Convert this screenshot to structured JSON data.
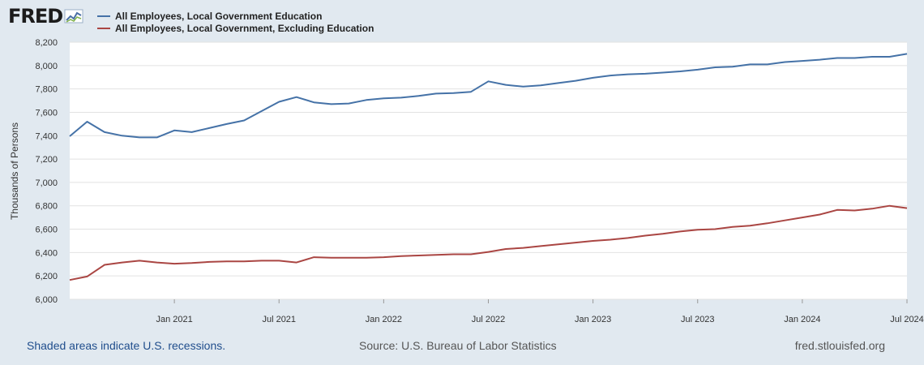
{
  "logo": {
    "text": "FRED"
  },
  "legend": [
    {
      "label": "All Employees, Local Government Education",
      "color": "#4572a7"
    },
    {
      "label": "All Employees, Local Government, Excluding Education",
      "color": "#aa4643"
    }
  ],
  "footer": {
    "recession_note": "Shaded areas indicate U.S. recessions.",
    "source": "Source: U.S. Bureau of Labor Statistics",
    "site": "fred.stlouisfed.org"
  },
  "chart_data": {
    "type": "line",
    "ylabel": "Thousands of Persons",
    "ylim": [
      6000,
      8200
    ],
    "yticks": [
      6000,
      6200,
      6400,
      6600,
      6800,
      7000,
      7200,
      7400,
      7600,
      7800,
      8000,
      8200
    ],
    "ytick_labels": [
      "6,000",
      "6,200",
      "6,400",
      "6,600",
      "6,800",
      "7,000",
      "7,200",
      "7,400",
      "7,600",
      "7,800",
      "8,000",
      "8,200"
    ],
    "x": [
      "2020-07",
      "2020-08",
      "2020-09",
      "2020-10",
      "2020-11",
      "2020-12",
      "2021-01",
      "2021-02",
      "2021-03",
      "2021-04",
      "2021-05",
      "2021-06",
      "2021-07",
      "2021-08",
      "2021-09",
      "2021-10",
      "2021-11",
      "2021-12",
      "2022-01",
      "2022-02",
      "2022-03",
      "2022-04",
      "2022-05",
      "2022-06",
      "2022-07",
      "2022-08",
      "2022-09",
      "2022-10",
      "2022-11",
      "2022-12",
      "2023-01",
      "2023-02",
      "2023-03",
      "2023-04",
      "2023-05",
      "2023-06",
      "2023-07",
      "2023-08",
      "2023-09",
      "2023-10",
      "2023-11",
      "2023-12",
      "2024-01",
      "2024-02",
      "2024-03",
      "2024-04",
      "2024-05",
      "2024-06",
      "2024-07"
    ],
    "xticks": [
      "2021-01",
      "2021-07",
      "2022-01",
      "2022-07",
      "2023-01",
      "2023-07",
      "2024-01",
      "2024-07"
    ],
    "xtick_labels": [
      "Jan 2021",
      "Jul 2021",
      "Jan 2022",
      "Jul 2022",
      "Jan 2023",
      "Jul 2023",
      "Jan 2024",
      "Jul 2024"
    ],
    "series": [
      {
        "name": "All Employees, Local Government Education",
        "color": "#4572a7",
        "values": [
          7395,
          7520,
          7430,
          7400,
          7385,
          7385,
          7445,
          7430,
          7465,
          7500,
          7530,
          7610,
          7690,
          7730,
          7685,
          7670,
          7675,
          7705,
          7720,
          7725,
          7740,
          7760,
          7765,
          7775,
          7865,
          7835,
          7820,
          7830,
          7850,
          7870,
          7895,
          7915,
          7925,
          7930,
          7940,
          7950,
          7965,
          7985,
          7990,
          8010,
          8010,
          8030,
          8040,
          8050,
          8065,
          8065,
          8075,
          8075,
          8100
        ]
      },
      {
        "name": "All Employees, Local Government, Excluding Education",
        "color": "#aa4643",
        "values": [
          6165,
          6195,
          6295,
          6315,
          6330,
          6315,
          6305,
          6310,
          6320,
          6325,
          6325,
          6330,
          6330,
          6315,
          6360,
          6355,
          6355,
          6355,
          6360,
          6370,
          6375,
          6380,
          6385,
          6385,
          6405,
          6430,
          6440,
          6455,
          6470,
          6485,
          6500,
          6510,
          6525,
          6545,
          6560,
          6580,
          6595,
          6600,
          6620,
          6630,
          6650,
          6675,
          6700,
          6725,
          6765,
          6760,
          6775,
          6800,
          6780
        ]
      }
    ],
    "grid": true,
    "legend_position": "top-left"
  }
}
